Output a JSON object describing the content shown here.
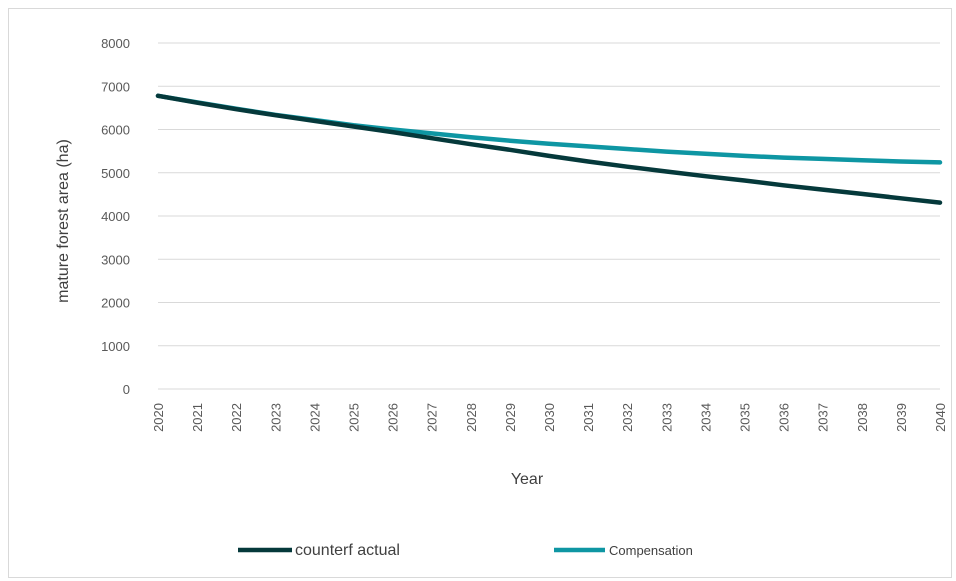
{
  "chart_data": {
    "type": "line",
    "title": "",
    "xlabel": "Year",
    "ylabel": "mature forest area (ha)",
    "ylim": [
      0,
      8000
    ],
    "yticks": [
      0,
      1000,
      2000,
      3000,
      4000,
      5000,
      6000,
      7000,
      8000
    ],
    "x": [
      "2020",
      "2021",
      "2022",
      "2023",
      "2024",
      "2025",
      "2026",
      "2027",
      "2028",
      "2029",
      "2030",
      "2031",
      "2032",
      "2033",
      "2034",
      "2035",
      "2036",
      "2037",
      "2038",
      "2039",
      "2040"
    ],
    "series": [
      {
        "name": "counterf actual",
        "color": "#05393b",
        "values": [
          6780,
          6620,
          6470,
          6330,
          6200,
          6070,
          5940,
          5800,
          5660,
          5530,
          5390,
          5260,
          5140,
          5030,
          4920,
          4820,
          4710,
          4610,
          4510,
          4410,
          4310
        ]
      },
      {
        "name": "Compensation",
        "color": "#0e96a3",
        "values": [
          6780,
          6630,
          6480,
          6340,
          6220,
          6100,
          6000,
          5910,
          5820,
          5740,
          5670,
          5610,
          5550,
          5490,
          5440,
          5390,
          5350,
          5320,
          5290,
          5260,
          5240
        ]
      }
    ],
    "grid": "horizontal",
    "legend_position": "bottom"
  }
}
